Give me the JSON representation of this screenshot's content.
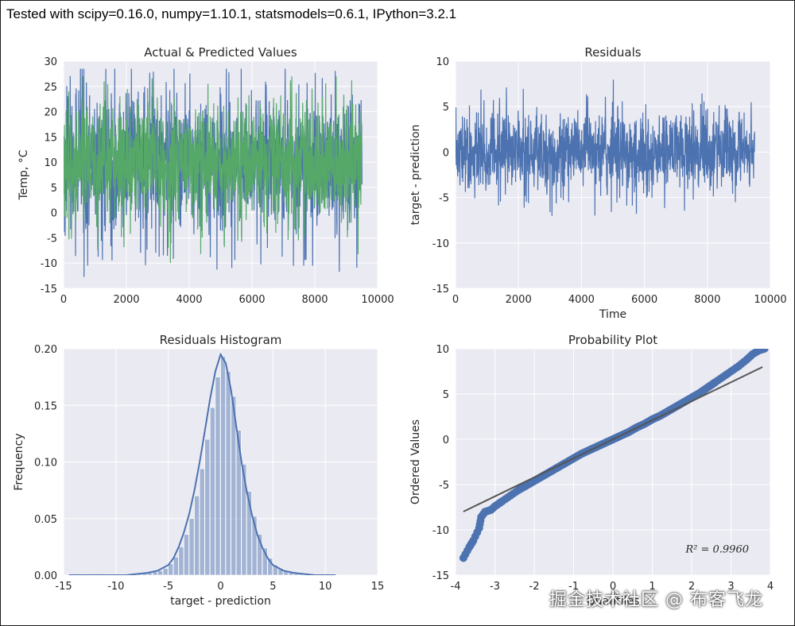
{
  "banner": {
    "text": "Tested with scipy=0.16.0, numpy=1.10.1, statsmodels=0.6.1, IPython=3.2.1"
  },
  "watermark": {
    "text": "掘金技术社区 @ 布客飞龙"
  },
  "colors": {
    "axes_bg": "#eaeaf2",
    "grid": "#ffffff",
    "blue": "#4c72b0",
    "green": "#55a868",
    "red": "#c44e52",
    "tick_text": "#262626",
    "fit_line": "#555555"
  },
  "chart_data": [
    {
      "id": "actual",
      "type": "line",
      "title": "Actual & Predicted Values",
      "xlabel": "",
      "ylabel": "Temp, °C",
      "xlim": [
        0,
        10000
      ],
      "ylim": [
        -15,
        30
      ],
      "xticks": [
        0,
        2000,
        4000,
        6000,
        8000,
        10000
      ],
      "yticks": [
        -15,
        -10,
        -5,
        0,
        5,
        10,
        15,
        20,
        25,
        30
      ],
      "grid": true,
      "series": [
        {
          "name": "actual",
          "color": "blue",
          "n_points": 9500,
          "mean": 10,
          "noise_sd": 6.5,
          "range": [
            -14.5,
            28.5
          ]
        },
        {
          "name": "predicted",
          "color": "green",
          "n_points": 9500,
          "mean": 10,
          "noise_sd": 5.5,
          "range": [
            -12,
            27
          ]
        }
      ]
    },
    {
      "id": "residuals",
      "type": "line",
      "title": "Residuals",
      "xlabel": "Time",
      "ylabel": "target - prediction",
      "xlim": [
        0,
        10000
      ],
      "ylim": [
        -15,
        10
      ],
      "xticks": [
        0,
        2000,
        4000,
        6000,
        8000,
        10000
      ],
      "yticks": [
        -15,
        -10,
        -5,
        0,
        5,
        10
      ],
      "grid": true,
      "series": [
        {
          "name": "residuals",
          "color": "blue",
          "n_points": 9500,
          "mean": 0,
          "noise_sd": 2.1,
          "range": [
            -13,
            10
          ]
        }
      ]
    },
    {
      "id": "hist",
      "type": "bar",
      "title": "Residuals Histogram",
      "xlabel": "target - prediction",
      "ylabel": "Frequency",
      "xlim": [
        -15,
        15
      ],
      "ylim": [
        0,
        0.2
      ],
      "xticks": [
        -15,
        -10,
        -5,
        0,
        5,
        10,
        15
      ],
      "yticks": [
        0.0,
        0.05,
        0.1,
        0.15,
        0.2
      ],
      "ytick_labels": [
        "0.00",
        "0.05",
        "0.10",
        "0.15",
        "0.20"
      ],
      "grid": true,
      "bin_width": 0.5,
      "bins": [
        [
          -14.5,
          0.001
        ],
        [
          -13.0,
          0.001
        ],
        [
          -11.0,
          0.001
        ],
        [
          -10.0,
          0.001
        ],
        [
          -9.5,
          0.001
        ],
        [
          -8.5,
          0.001
        ],
        [
          -8.0,
          0.001
        ],
        [
          -7.5,
          0.002
        ],
        [
          -7.0,
          0.002
        ],
        [
          -6.5,
          0.003
        ],
        [
          -6.0,
          0.004
        ],
        [
          -5.5,
          0.006
        ],
        [
          -5.0,
          0.01
        ],
        [
          -4.5,
          0.016
        ],
        [
          -4.0,
          0.025
        ],
        [
          -3.5,
          0.036
        ],
        [
          -3.0,
          0.05
        ],
        [
          -2.5,
          0.07
        ],
        [
          -2.0,
          0.094
        ],
        [
          -1.5,
          0.12
        ],
        [
          -1.0,
          0.148
        ],
        [
          -0.5,
          0.175
        ],
        [
          0.0,
          0.193
        ],
        [
          0.5,
          0.18
        ],
        [
          1.0,
          0.158
        ],
        [
          1.5,
          0.128
        ],
        [
          2.0,
          0.098
        ],
        [
          2.5,
          0.074
        ],
        [
          3.0,
          0.052
        ],
        [
          3.5,
          0.036
        ],
        [
          4.0,
          0.024
        ],
        [
          4.5,
          0.015
        ],
        [
          5.0,
          0.009
        ],
        [
          5.5,
          0.006
        ],
        [
          6.0,
          0.004
        ],
        [
          6.5,
          0.003
        ],
        [
          7.0,
          0.002
        ],
        [
          7.5,
          0.001
        ],
        [
          8.0,
          0.001
        ],
        [
          9.0,
          0.001
        ],
        [
          10.5,
          0.001
        ]
      ],
      "kde": {
        "x": [
          -14.5,
          -9,
          -7,
          -6,
          -5,
          -4.5,
          -4,
          -3.5,
          -3,
          -2.5,
          -2,
          -1.5,
          -1,
          -0.5,
          0,
          0.5,
          1,
          1.5,
          2,
          2.5,
          3,
          3.5,
          4,
          4.5,
          5,
          6,
          7,
          9,
          11
        ],
        "y": [
          0.0,
          0.0,
          0.002,
          0.004,
          0.009,
          0.015,
          0.025,
          0.038,
          0.054,
          0.075,
          0.1,
          0.128,
          0.156,
          0.18,
          0.195,
          0.187,
          0.163,
          0.131,
          0.1,
          0.074,
          0.053,
          0.036,
          0.024,
          0.015,
          0.009,
          0.004,
          0.002,
          0.0,
          0.0
        ]
      }
    },
    {
      "id": "prob",
      "type": "scatter",
      "title": "Probability Plot",
      "xlabel": "Quantiles",
      "ylabel": "Ordered Values",
      "xlim": [
        -4,
        4
      ],
      "ylim": [
        -15,
        10
      ],
      "xticks": [
        -4,
        -3,
        -2,
        -1,
        0,
        1,
        2,
        3,
        4
      ],
      "yticks": [
        -15,
        -10,
        -5,
        0,
        5,
        10
      ],
      "grid": true,
      "annotation": "R² = 0.9960",
      "fit_line": {
        "slope": 2.1,
        "intercept": 0.0,
        "x_range": [
          -3.8,
          3.8
        ]
      },
      "points": {
        "x": [
          -3.8,
          -3.65,
          -3.55,
          -3.4,
          -3.35,
          -3.25,
          -3.1,
          -3.0,
          -2.9,
          -2.8,
          -2.6,
          -2.4,
          -2.2,
          -2.0,
          -1.8,
          -1.6,
          -1.4,
          -1.2,
          -1.0,
          -0.8,
          -0.6,
          -0.4,
          -0.2,
          0.0,
          0.2,
          0.4,
          0.6,
          0.8,
          1.0,
          1.2,
          1.4,
          1.6,
          1.8,
          2.0,
          2.2,
          2.4,
          2.6,
          2.8,
          3.0,
          3.2,
          3.4,
          3.55,
          3.7,
          3.85
        ],
        "y": [
          -13.1,
          -11.9,
          -11.2,
          -9.8,
          -8.6,
          -8.0,
          -7.8,
          -7.4,
          -7.1,
          -6.8,
          -6.2,
          -5.6,
          -5.1,
          -4.6,
          -4.1,
          -3.6,
          -3.1,
          -2.6,
          -2.1,
          -1.6,
          -1.2,
          -0.8,
          -0.4,
          0.0,
          0.4,
          0.8,
          1.3,
          1.7,
          2.2,
          2.6,
          3.1,
          3.6,
          4.1,
          4.6,
          5.1,
          5.7,
          6.3,
          6.9,
          7.5,
          8.1,
          8.8,
          9.4,
          9.8,
          10.0
        ]
      }
    }
  ]
}
